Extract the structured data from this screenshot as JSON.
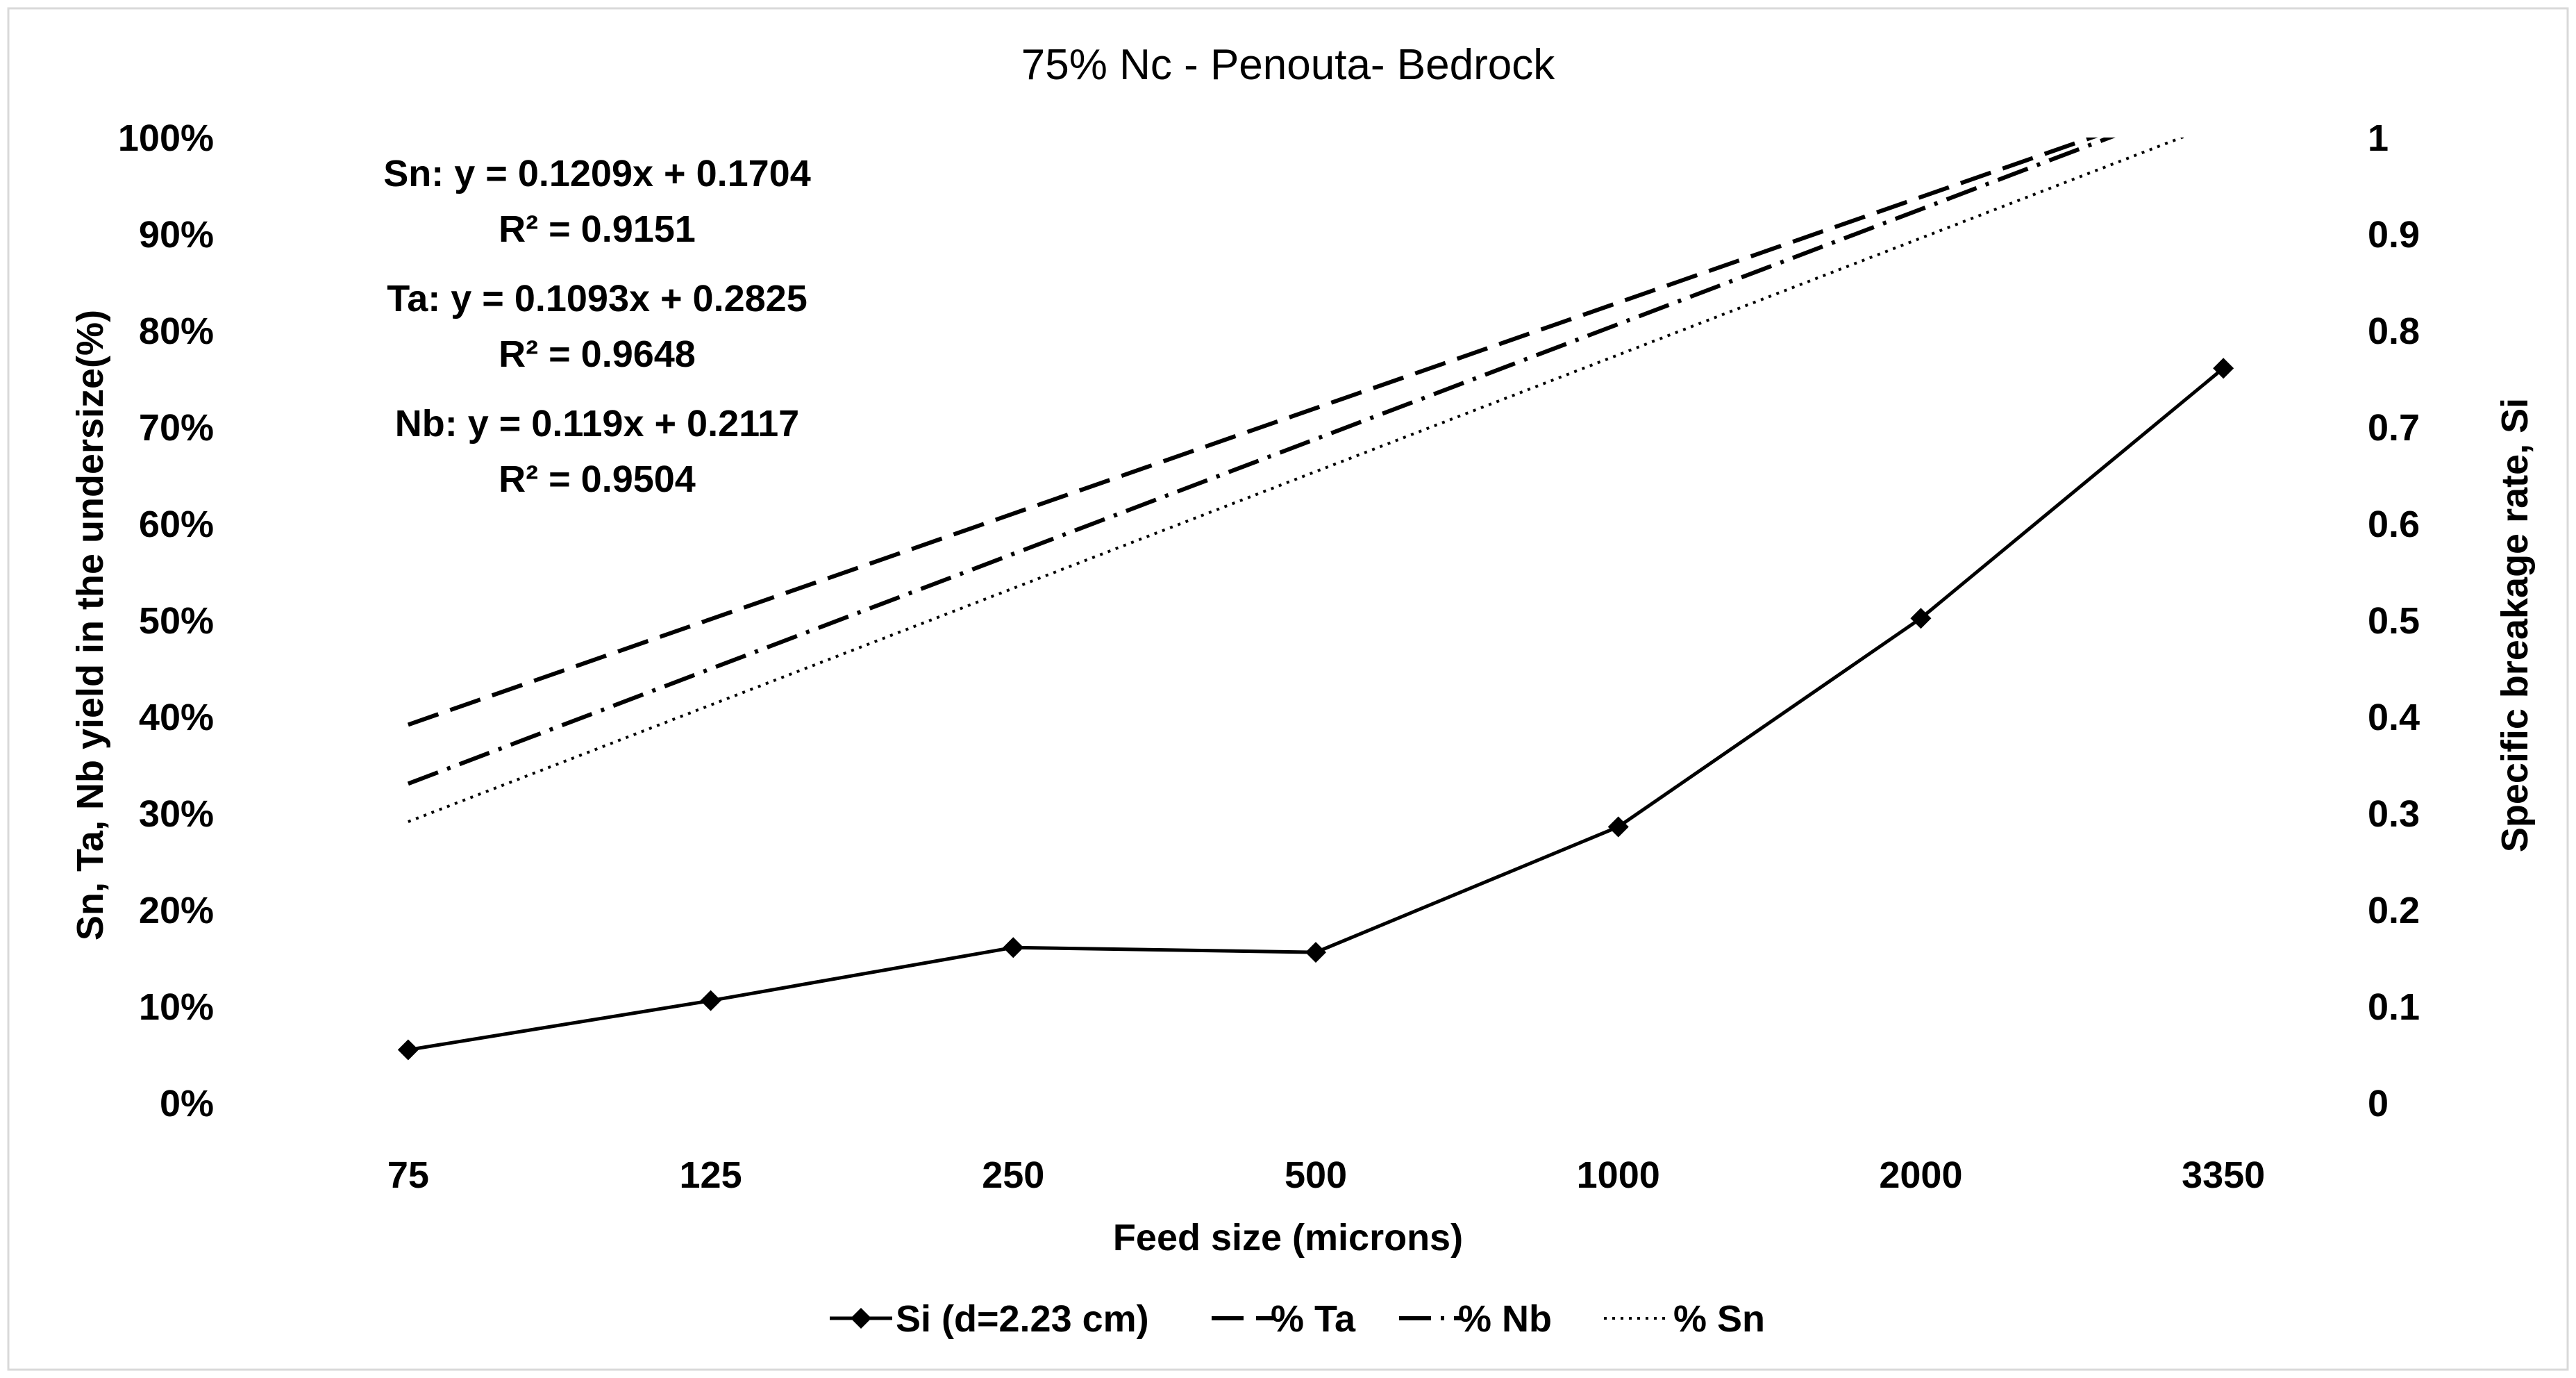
{
  "chart_data": {
    "type": "line",
    "title": "75% Nc - Penouta- Bedrock",
    "xlabel": "Feed size (microns)",
    "ylabel_left": "Sn, Ta, Nb yield in the undersize(%)",
    "ylabel_right": "Specific breakage rate, Si",
    "categories": [
      "75",
      "125",
      "250",
      "500",
      "1000",
      "2000",
      "3350"
    ],
    "ylim_left": [
      0,
      1
    ],
    "ylim_right": [
      0,
      1
    ],
    "yticks_left": [
      "0%",
      "10%",
      "20%",
      "30%",
      "40%",
      "50%",
      "60%",
      "70%",
      "80%",
      "90%",
      "100%"
    ],
    "yticks_right": [
      "0",
      "0.1",
      "0.2",
      "0.3",
      "0.4",
      "0.5",
      "0.6",
      "0.7",
      "0.8",
      "0.9",
      "1"
    ],
    "series": [
      {
        "name": "Si (d=2.23 cm)",
        "axis": "right",
        "style": "solid-diamond",
        "values": [
          0.055,
          0.106,
          0.161,
          0.156,
          0.286,
          0.502,
          0.761
        ]
      },
      {
        "name": "% Ta",
        "axis": "left",
        "style": "long-dash",
        "slope": 0.1093,
        "intercept": 0.2825
      },
      {
        "name": "% Nb",
        "axis": "left",
        "style": "dash-dot",
        "slope": 0.119,
        "intercept": 0.2117
      },
      {
        "name": "% Sn",
        "axis": "left",
        "style": "dotted",
        "slope": 0.1209,
        "intercept": 0.1704
      }
    ],
    "annotations": [
      {
        "eq": "Sn: y = 0.1209x + 0.1704",
        "r2": "R² = 0.9151"
      },
      {
        "eq": "Ta: y = 0.1093x + 0.2825",
        "r2": "R² = 0.9648"
      },
      {
        "eq": "Nb: y = 0.119x + 0.2117",
        "r2": "R² = 0.9504"
      }
    ],
    "legend": [
      "Si (d=2.23 cm)",
      "% Ta",
      "% Nb",
      "% Sn"
    ],
    "legend_position": "bottom"
  }
}
